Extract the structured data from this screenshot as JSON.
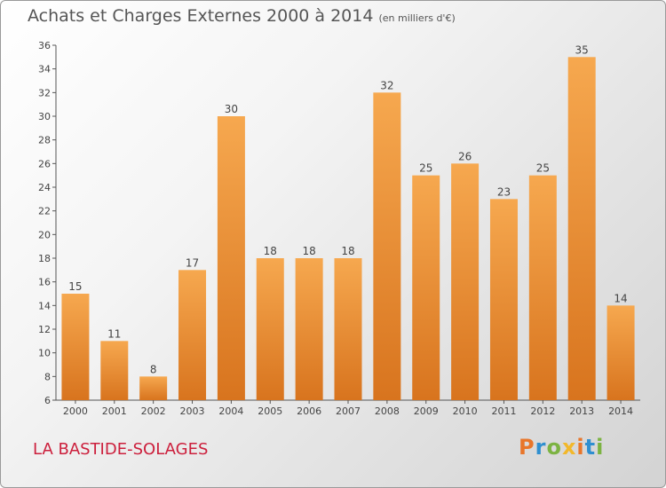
{
  "header": {
    "title": "Achats et Charges Externes 2000 à 2014",
    "unit": "(en milliers d'€)"
  },
  "footer": {
    "location": "LA BASTIDE-SOLAGES",
    "logo": "Proxiti"
  },
  "colors": {
    "bar_top": "#f6a84f",
    "bar_bottom": "#d8741e",
    "location_text": "#cc1f3c"
  },
  "chart_data": {
    "type": "bar",
    "title": "Achats et Charges Externes 2000 à 2014",
    "subtitle": "(en milliers d'€)",
    "categories": [
      "2000",
      "2001",
      "2002",
      "2003",
      "2004",
      "2005",
      "2006",
      "2007",
      "2008",
      "2009",
      "2010",
      "2011",
      "2012",
      "2013",
      "2014"
    ],
    "values": [
      15,
      11,
      8,
      17,
      30,
      18,
      18,
      18,
      32,
      25,
      26,
      23,
      25,
      35,
      14
    ],
    "ylim": [
      6,
      36
    ],
    "yticks": [
      6,
      8,
      10,
      12,
      14,
      16,
      18,
      20,
      22,
      24,
      26,
      28,
      30,
      32,
      34,
      36
    ],
    "grid": false,
    "data_labels": true
  }
}
